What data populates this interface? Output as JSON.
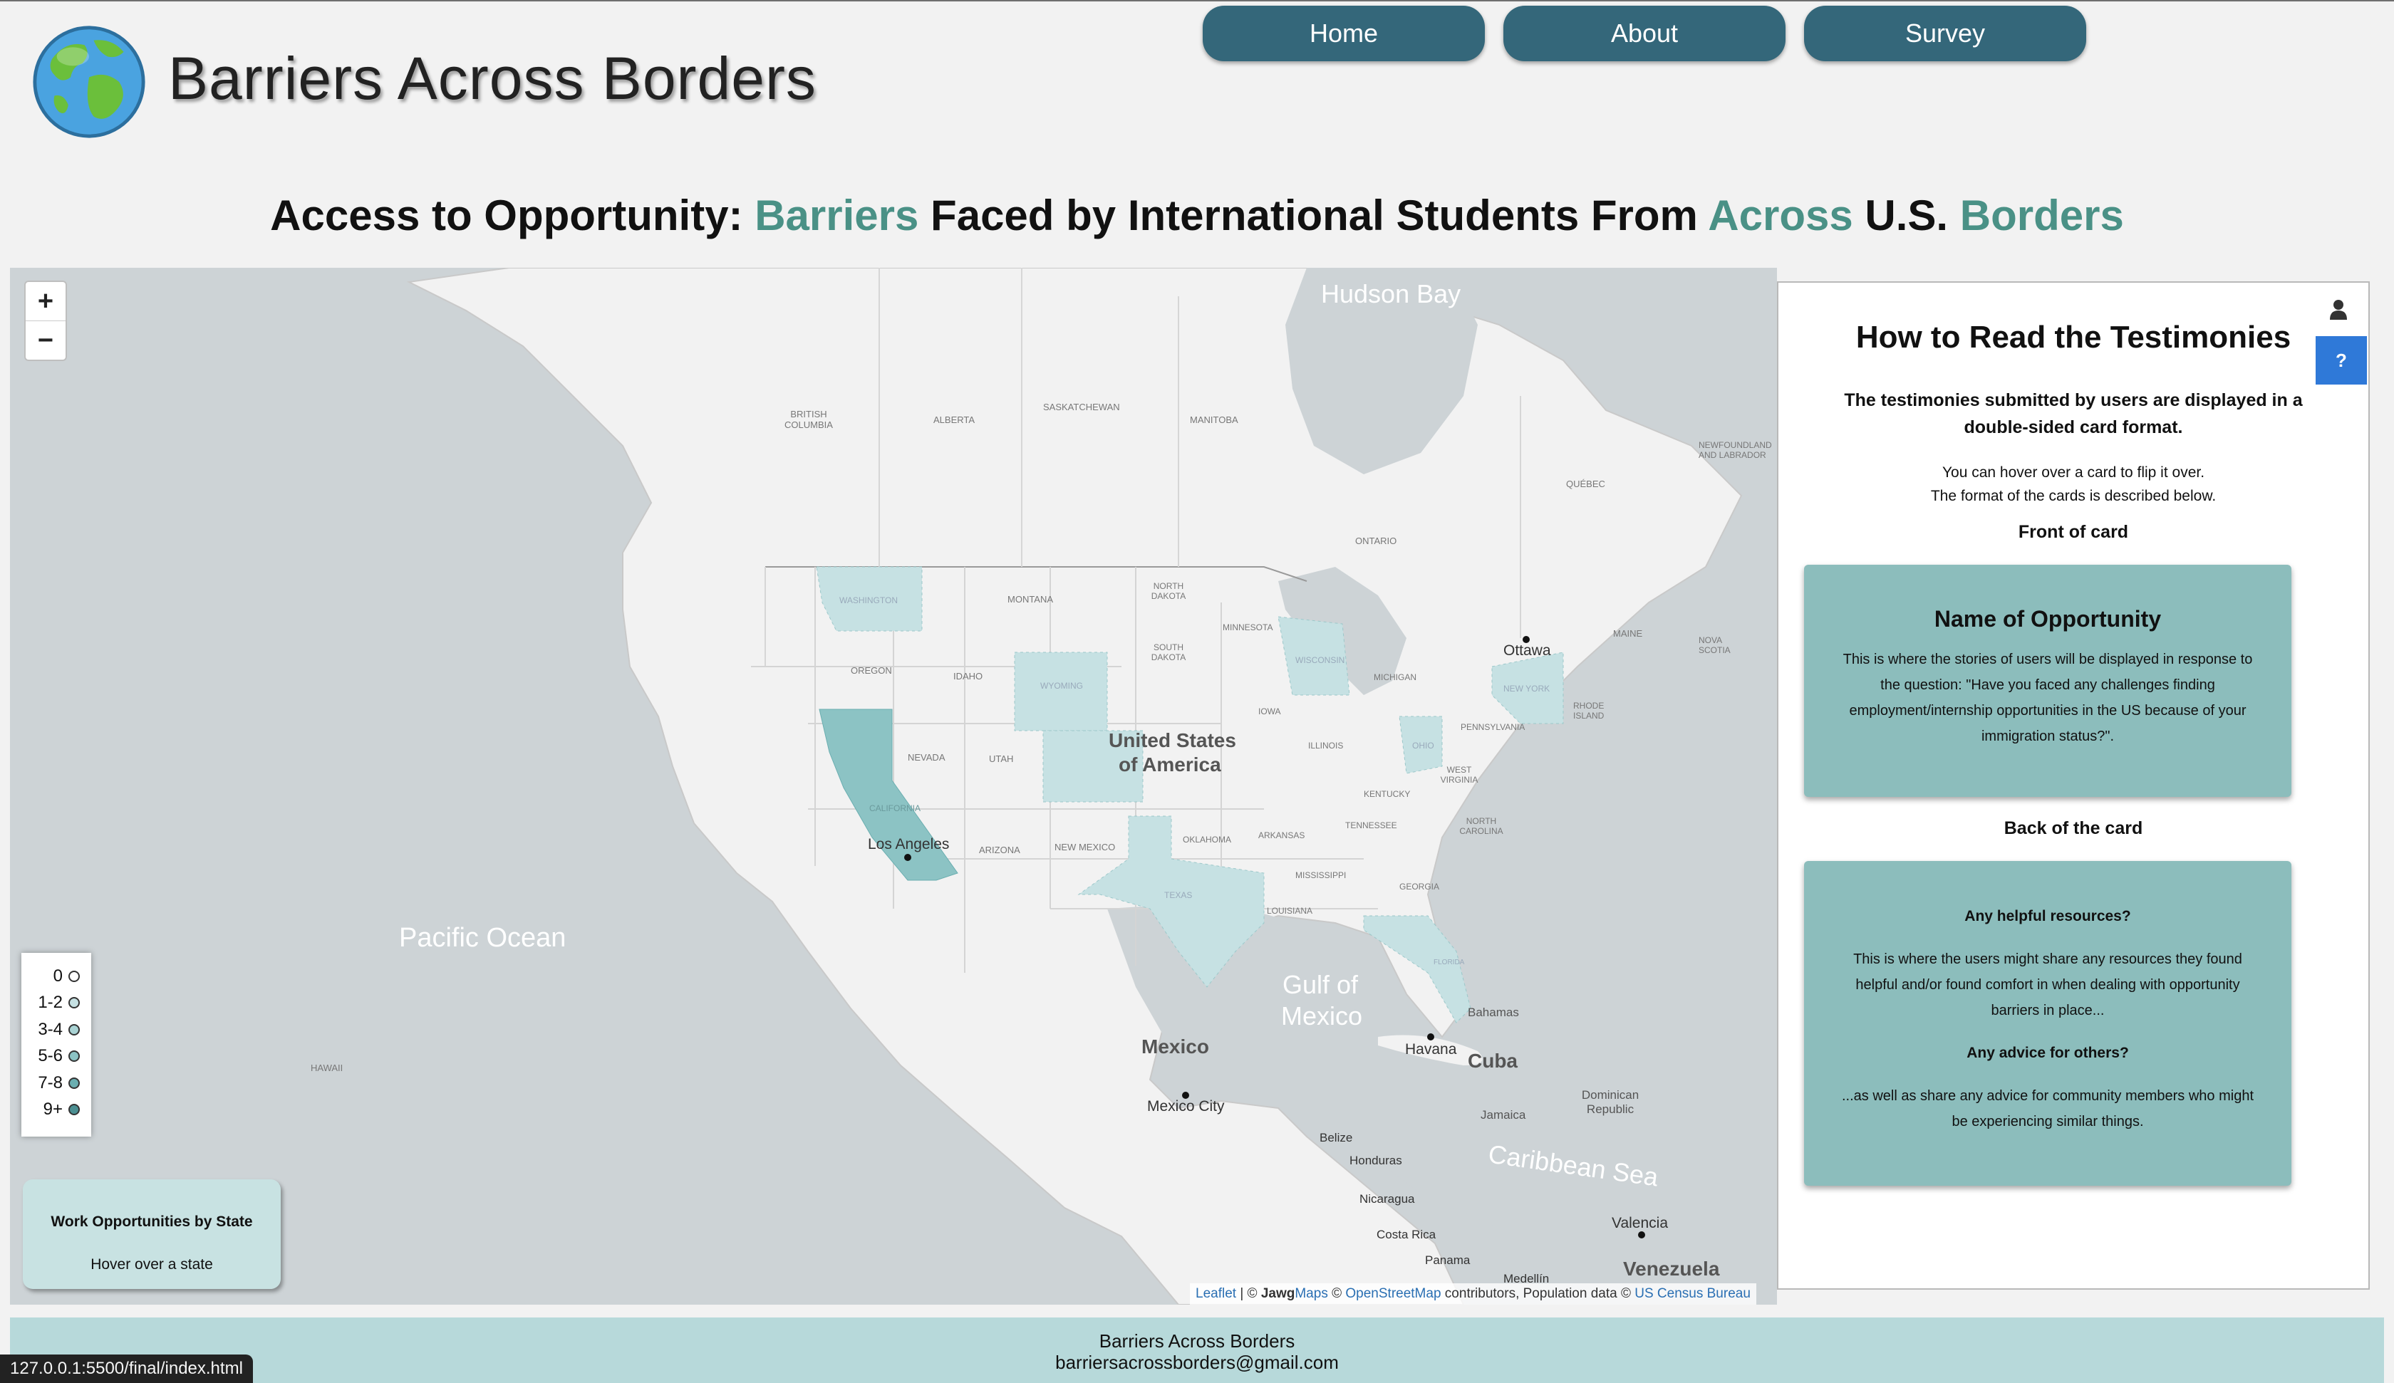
{
  "header": {
    "site_title": "Barriers Across Borders",
    "nav": [
      "Home",
      "About",
      "Survey"
    ],
    "headline": {
      "p1": "Access to Opportunity: ",
      "w1": "Barriers",
      "p2": " Faced by International Students From ",
      "w2": "Across",
      "p3": " U.S. ",
      "w3": "Borders"
    }
  },
  "colors": {
    "nav_bg": "#34677a",
    "accent": "#4a9186",
    "card_bg": "#8cbdbc",
    "footer_bg": "#b7d9da",
    "help_button": "#2f79d8",
    "state_light": "#c6e1e3",
    "state_dark": "#8cc3c4"
  },
  "map": {
    "zoom_in": "+",
    "zoom_out": "−",
    "legend": [
      "0",
      "1-2",
      "3-4",
      "5-6",
      "7-8",
      "9+"
    ],
    "legend_colors": [
      "#ffffff",
      "#c6e1e3",
      "#a9d3d4",
      "#8cc3c4",
      "#6aaeb0",
      "#4b8f92"
    ],
    "info_title": "Work Opportunities by State",
    "info_subtitle": "Hover over a state",
    "attribution": {
      "leaflet": "Leaflet",
      "sep1": " | © ",
      "jawg_bold": "Jawg",
      "jawg_rest": "Maps",
      "sep2": " © ",
      "osm": "OpenStreetMap",
      "mid": " contributors, Population data © ",
      "census": "US Census Bureau"
    },
    "labels": {
      "hudson_bay": "Hudson Bay",
      "pacific": "Pacific Ocean",
      "gulf_1": "Gulf of",
      "gulf_2": "Mexico",
      "caribbean": "Caribbean Sea",
      "usa_1": "United States",
      "usa_2": "of America",
      "mexico": "Mexico",
      "mexico_city": "Mexico City",
      "cuba": "Cuba",
      "havana": "Havana",
      "bahamas": "Bahamas",
      "venezuela": "Venezuela",
      "ottawa": "Ottawa",
      "los_angeles": "Los Angeles",
      "hawaii": "HAWAII",
      "bc": "BRITISH COLUMBIA",
      "alberta": "ALBERTA",
      "saskatchewan": "SASKATCHEWAN",
      "manitoba": "MANITOBA",
      "ontario": "ONTARIO",
      "quebec": "QUÉBEC",
      "newfoundland": "NEWFOUNDLAND AND LABRADOR",
      "nova_scotia": "NOVA SCOTIA",
      "maine": "MAINE",
      "washington": "WASHINGTON",
      "oregon": "OREGON",
      "idaho": "IDAHO",
      "montana": "MONTANA",
      "wyoming": "WYOMING",
      "nevada": "NEVADA",
      "utah": "UTAH",
      "california": "CALIFORNIA",
      "arizona": "ARIZONA",
      "new_mexico": "NEW MEXICO",
      "texas": "TEXAS",
      "north_dakota": "NORTH DAKOTA",
      "south_dakota": "SOUTH DAKOTA",
      "minnesota": "MINNESOTA",
      "iowa": "IOWA",
      "wisconsin": "WISCONSIN",
      "michigan": "MICHIGAN",
      "illinois": "ILLINOIS",
      "ohio": "OHIO",
      "kentucky": "KENTUCKY",
      "tennessee": "TENNESSEE",
      "oklahoma": "OKLAHOMA",
      "arkansas": "ARKANSAS",
      "mississippi": "MISSISSIPPI",
      "louisiana": "LOUISIANA",
      "georgia": "GEORGIA",
      "florida": "FLORIDA",
      "north_carolina": "NORTH CAROLINA",
      "west_virginia": "WEST VIRGINIA",
      "pennsylvania": "PENNSYLVANIA",
      "new_york": "NEW YORK",
      "rhode_island": "RHODE ISLAND",
      "belize": "Belize",
      "honduras": "Honduras",
      "nicaragua": "Nicaragua",
      "costa_rica": "Costa Rica",
      "panama": "Panama",
      "jamaica": "Jamaica",
      "dominican": "Dominican Republic",
      "valencia": "Valencia",
      "medellin": "Medellín"
    }
  },
  "panel": {
    "title": "How to Read the Testimonies",
    "intro": "The testimonies submitted by users are displayed in a double-sided card format.",
    "note_1": "You can hover over a card to flip it over.",
    "note_2": "The format of the cards is described below.",
    "front_label": "Front of card",
    "front_title": "Name of Opportunity",
    "front_text": "This is where the stories of users will be displayed in response to the question: \"Have you faced any challenges finding employment/internship opportunities in the US because of your immigration status?\".",
    "back_label": "Back of the card",
    "back_q1": "Any helpful resources?",
    "back_a1": "This is where the users might share any resources they found helpful and/or found comfort in when dealing with opportunity barriers in place...",
    "back_q2": "Any advice for others?",
    "back_a2": "...as well as share any advice for community members who might be experiencing similar things.",
    "help_label": "?"
  },
  "footer": {
    "name": "Barriers Across Borders",
    "email": "barriersacrossborders@gmail.com"
  },
  "status_url": "127.0.0.1:5500/final/index.html"
}
